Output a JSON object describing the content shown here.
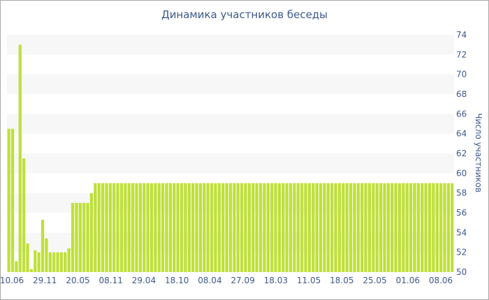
{
  "chart_data": {
    "type": "bar",
    "title": "Динамика участников беседы",
    "ylabel": "Число участников",
    "xlabel": "",
    "ylim": [
      50,
      74
    ],
    "yticks": [
      50,
      52,
      54,
      56,
      58,
      60,
      62,
      64,
      66,
      68,
      70,
      72,
      74
    ],
    "grid": "horizontal alternating bands",
    "bar_color": "#bfe03a",
    "band_color": "#f7f7f7",
    "text_color": "#3d5a8a",
    "x_tick_labels": [
      "10.06",
      "29.11",
      "20.05",
      "08.11",
      "29.04",
      "18.10",
      "08.04",
      "27.09",
      "18.03",
      "11.05",
      "18.05",
      "25.05",
      "01.06",
      "08.06"
    ],
    "values": [
      64.5,
      64.5,
      51.1,
      73,
      61.5,
      52.9,
      50.3,
      52.2,
      52,
      55.3,
      53.4,
      52,
      52,
      52,
      52,
      52,
      52.4,
      57,
      57,
      57,
      57,
      57,
      58,
      59,
      59,
      59,
      59,
      59,
      59,
      59,
      59,
      59,
      59,
      59,
      59,
      59,
      59,
      59,
      59,
      59,
      59,
      59,
      59,
      59,
      59,
      59,
      59,
      59,
      59,
      59,
      59,
      59,
      59,
      59,
      59,
      59,
      59,
      59,
      59,
      59,
      59,
      59,
      59,
      59,
      59,
      59,
      59,
      59,
      59,
      59,
      59,
      59,
      59,
      59,
      59,
      59,
      59,
      59,
      59,
      59,
      59,
      59,
      59,
      59,
      59,
      59,
      59,
      59,
      59,
      59,
      59,
      59,
      59,
      59,
      59,
      59,
      59,
      59,
      59,
      59,
      59,
      59,
      59,
      59,
      59,
      59,
      59,
      59,
      59,
      59,
      59,
      59,
      59,
      59,
      59,
      59,
      59,
      59,
      59
    ]
  }
}
